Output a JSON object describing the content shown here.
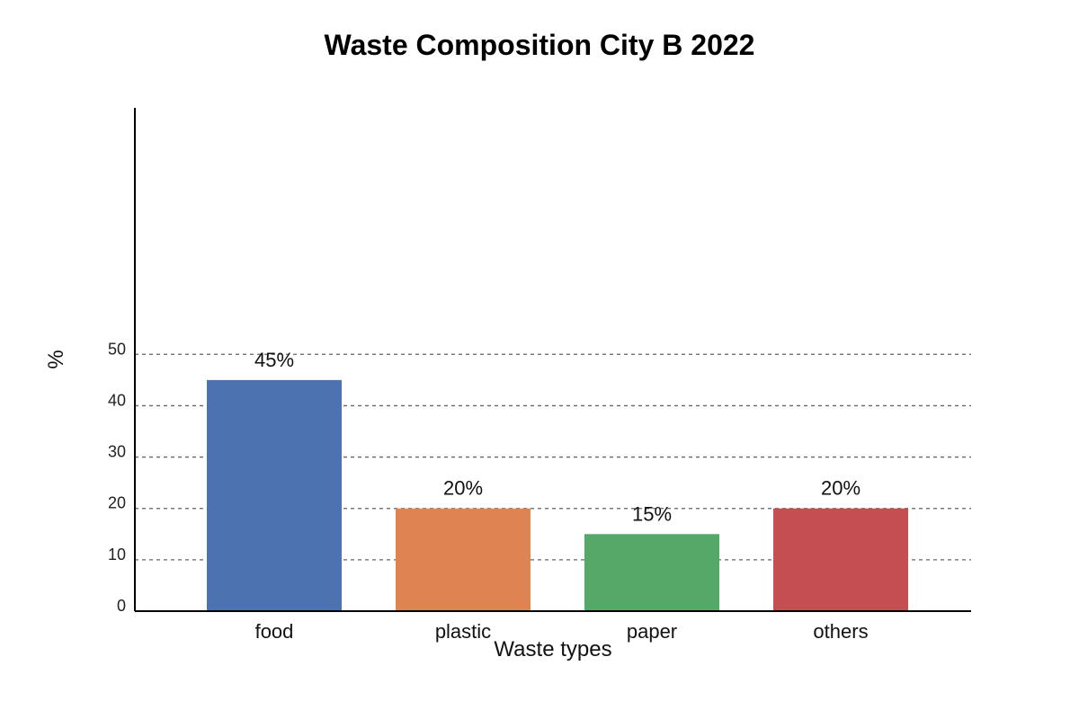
{
  "chart_data": {
    "type": "bar",
    "title": "Waste Composition City B 2022",
    "xlabel": "Waste types",
    "ylabel": "%",
    "categories": [
      "food",
      "plastic",
      "paper",
      "others"
    ],
    "values": [
      45,
      20,
      15,
      20
    ],
    "data_labels": [
      "45%",
      "20%",
      "15%",
      "20%"
    ],
    "colors": [
      "#4c72b0",
      "#dd8452",
      "#55a868",
      "#c44e52"
    ],
    "y_ticks": [
      0,
      10,
      20,
      30,
      40,
      50
    ],
    "ylim": [
      0,
      98
    ],
    "grid": true,
    "grid_style": "dashed-horizontal"
  }
}
